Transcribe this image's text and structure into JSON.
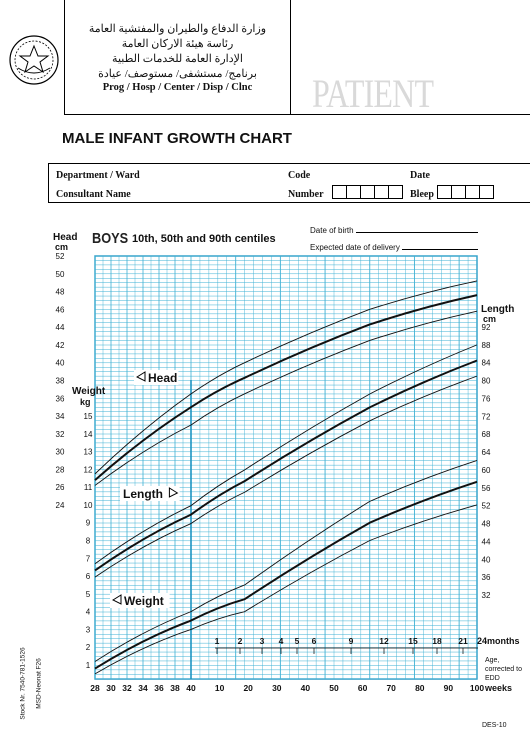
{
  "header": {
    "arabic_lines": [
      "وزارة الدفاع والطيران والمفتشية العامة",
      "رئاسة هيئة الاركان العامة",
      "الإدارة العامة للخدمات الطبية",
      "برنامج/ مستشفى/ مستوصف/ عيادة"
    ],
    "prog_line": "Prog / Hosp / Center / Disp / Clnc",
    "patient_label": "PATIENT",
    "logo_icon": "emblem-icon"
  },
  "title": "MALE INFANT GROWTH CHART",
  "form": {
    "department": "Department / Ward",
    "code": "Code",
    "date": "Date",
    "consultant": "Consultant Name",
    "number": "Number",
    "bleep": "Bleep"
  },
  "chart_header": {
    "boys": "BOYS",
    "centiles": "10th, 50th and 90th centiles",
    "date_of_birth": "Date of birth",
    "expected_delivery": "Expected date of delivery"
  },
  "chart_data": {
    "type": "line",
    "x_axis": {
      "label": "weeks",
      "ticks": [
        "28",
        "30",
        "32",
        "34",
        "36",
        "38",
        "40",
        "10",
        "20",
        "30",
        "40",
        "50",
        "60",
        "70",
        "80",
        "90",
        "100"
      ]
    },
    "months_axis": {
      "label": "24months",
      "ticks": [
        "1",
        "2",
        "3",
        "4",
        "5",
        "6",
        "9",
        "12",
        "15",
        "18",
        "21"
      ]
    },
    "age_note": "Age, corrected to EDD",
    "head_axis": {
      "label": "Head",
      "unit": "cm",
      "ticks": [
        "52",
        "50",
        "48",
        "46",
        "44",
        "42",
        "40",
        "38",
        "36",
        "34",
        "32",
        "30",
        "28",
        "26",
        "24"
      ]
    },
    "weight_axis": {
      "label": "Weight",
      "unit": "kg",
      "ticks": [
        "15",
        "14",
        "13",
        "12",
        "11",
        "10",
        "9",
        "8",
        "7",
        "6",
        "5",
        "4",
        "3",
        "2",
        "1"
      ]
    },
    "length_axis": {
      "label": "Length",
      "unit": "cm",
      "ticks": [
        "92",
        "88",
        "84",
        "80",
        "76",
        "72",
        "68",
        "64",
        "60",
        "56",
        "52",
        "48",
        "44",
        "40",
        "36",
        "32"
      ]
    },
    "series": [
      {
        "name": "Head",
        "percentiles": {
          "p10": [
            [
              28,
              26.2
            ],
            [
              40,
              33.0
            ],
            [
              52,
              36.5
            ],
            [
              80,
              42.5
            ],
            [
              104,
              45.8
            ]
          ],
          "p50": [
            [
              28,
              26.8
            ],
            [
              40,
              35.0
            ],
            [
              52,
              38.3
            ],
            [
              80,
              44.3
            ],
            [
              104,
              47.6
            ]
          ],
          "p90": [
            [
              28,
              27.5
            ],
            [
              40,
              36.5
            ],
            [
              52,
              40.0
            ],
            [
              80,
              46.0
            ],
            [
              104,
              49.2
            ]
          ]
        }
      },
      {
        "name": "Length",
        "percentiles": {
          "p10": [
            [
              28,
              36.0
            ],
            [
              40,
              48.0
            ],
            [
              52,
              55.0
            ],
            [
              80,
              71.0
            ],
            [
              104,
              81.0
            ]
          ],
          "p50": [
            [
              28,
              37.5
            ],
            [
              40,
              50.0
            ],
            [
              52,
              57.5
            ],
            [
              80,
              74.0
            ],
            [
              104,
              84.5
            ]
          ],
          "p90": [
            [
              28,
              39.0
            ],
            [
              40,
              52.0
            ],
            [
              52,
              60.0
            ],
            [
              80,
              77.0
            ],
            [
              104,
              88.0
            ]
          ]
        }
      },
      {
        "name": "Weight",
        "percentiles": {
          "p10": [
            [
              28,
              0.5
            ],
            [
              40,
              3.0
            ],
            [
              52,
              4.0
            ],
            [
              80,
              8.0
            ],
            [
              104,
              10.0
            ]
          ],
          "p50": [
            [
              28,
              0.8
            ],
            [
              40,
              3.5
            ],
            [
              52,
              4.7
            ],
            [
              80,
              9.0
            ],
            [
              104,
              11.3
            ]
          ],
          "p90": [
            [
              28,
              1.2
            ],
            [
              40,
              4.0
            ],
            [
              52,
              5.5
            ],
            [
              80,
              10.2
            ],
            [
              104,
              12.5
            ]
          ]
        }
      }
    ]
  },
  "footer": {
    "stock": "Stock Nr. 7540-781-1526",
    "form_no": "MSD-Neonat F26",
    "des": "DES-10"
  },
  "colors": {
    "grid": "#3fb1d4",
    "grid_major": "#1e94c2",
    "curve": "#111111"
  }
}
